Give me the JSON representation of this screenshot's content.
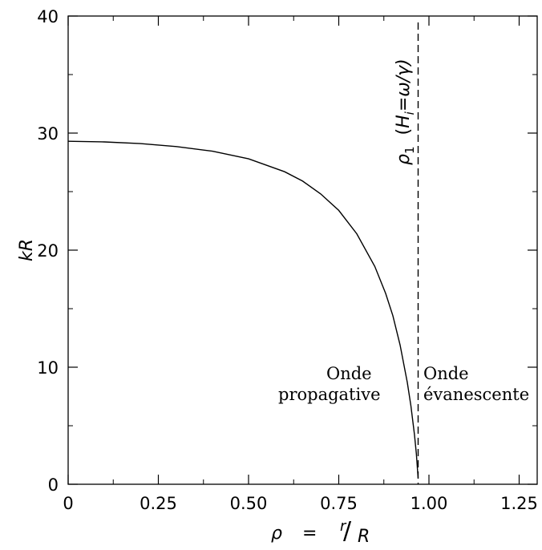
{
  "chart_data": {
    "type": "line",
    "title": "",
    "xlabel": {
      "symbol": "ρ",
      "equals": "=",
      "numerator": "r",
      "slash": "/",
      "denominator": "R"
    },
    "ylabel": "kR",
    "xlim": [
      0,
      1.3
    ],
    "ylim": [
      0,
      40
    ],
    "x_ticks": [
      {
        "value": 0,
        "label": "0"
      },
      {
        "value": 0.25,
        "label": "0.25"
      },
      {
        "value": 0.5,
        "label": "0.50"
      },
      {
        "value": 0.75,
        "label": "0.75"
      },
      {
        "value": 1.0,
        "label": "1.00"
      },
      {
        "value": 1.25,
        "label": "1.25"
      }
    ],
    "y_ticks": [
      {
        "value": 0,
        "label": "0"
      },
      {
        "value": 10,
        "label": "10"
      },
      {
        "value": 20,
        "label": "20"
      },
      {
        "value": 30,
        "label": "30"
      },
      {
        "value": 40,
        "label": "40"
      }
    ],
    "x_minor_step": 0.125,
    "y_minor_step": 5,
    "grid": false,
    "series": [
      {
        "x": [
          0,
          0.1,
          0.2,
          0.3,
          0.4,
          0.5,
          0.6,
          0.65,
          0.7,
          0.75,
          0.8,
          0.85,
          0.88,
          0.9,
          0.92,
          0.94,
          0.95,
          0.96,
          0.965,
          0.97
        ],
        "y": [
          29.3,
          29.25,
          29.1,
          28.85,
          28.45,
          27.8,
          26.7,
          25.9,
          24.8,
          23.4,
          21.4,
          18.6,
          16.3,
          14.4,
          11.9,
          8.7,
          6.7,
          4.2,
          2.6,
          0.5
        ]
      }
    ],
    "vertical_line": {
      "x": 0.97,
      "style": "dashed",
      "label": {
        "symbol": "ρ",
        "subscript": "1",
        "expression": "(H",
        "expression_subscript": "i",
        "expression_rest": "=ω/γ)"
      }
    },
    "annotations": [
      {
        "id": "left",
        "lines": [
          "Onde",
          "propagative"
        ]
      },
      {
        "id": "right",
        "lines": [
          "Onde",
          "évanescente"
        ]
      }
    ]
  }
}
